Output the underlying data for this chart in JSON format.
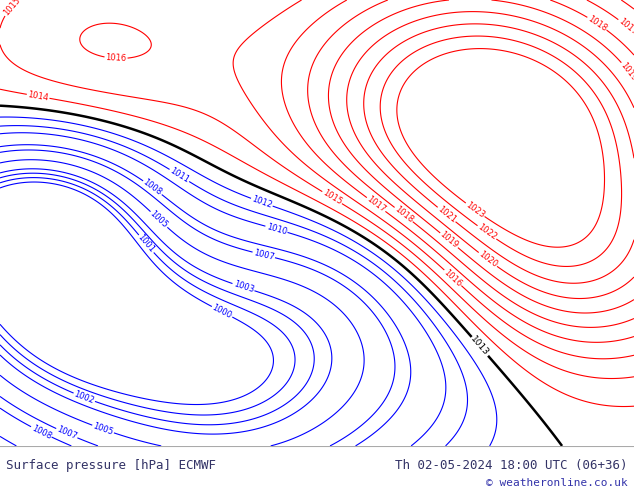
{
  "title_left": "Surface pressure [hPa] ECMWF",
  "title_right": "Th 02-05-2024 18:00 UTC (06+36)",
  "copyright": "© weatheronline.co.uk",
  "bg_color": "#c8e6a0",
  "footer_text_color": "#333366",
  "contour_levels_blue": [
    1000,
    1001,
    1002,
    1003,
    1005,
    1007,
    1008,
    1010,
    1011,
    1012
  ],
  "contour_levels_red": [
    1014,
    1015,
    1016,
    1017,
    1018,
    1019,
    1020,
    1021,
    1022,
    1023
  ],
  "contour_black": [
    1013
  ],
  "footer_fontsize": 9
}
